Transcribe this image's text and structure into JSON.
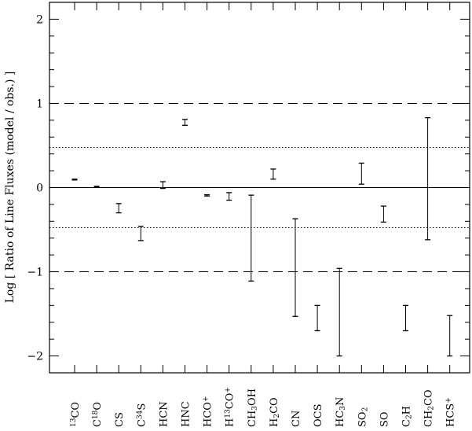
{
  "chart_data": {
    "type": "errorbar",
    "ylabel": "Log [ Ratio of Line Fluxes (model / obs.) ]",
    "ylim": [
      -2.2,
      2.2
    ],
    "yticks": [
      {
        "value": 2,
        "label": "2"
      },
      {
        "value": 1,
        "label": "1"
      },
      {
        "value": 0,
        "label": "0"
      },
      {
        "value": -1,
        "label": "−1"
      },
      {
        "value": -2,
        "label": "−2"
      }
    ],
    "reference_lines": [
      {
        "y": 1,
        "style": "dashed"
      },
      {
        "y": -1,
        "style": "dashed"
      },
      {
        "y": 0.477,
        "style": "dotted"
      },
      {
        "y": -0.477,
        "style": "dotted"
      },
      {
        "y": 0,
        "style": "solid"
      }
    ],
    "categories": [
      {
        "name": "13CO",
        "parts": [
          {
            "t": "13",
            "s": "sup"
          },
          {
            "t": "CO"
          }
        ]
      },
      {
        "name": "C18O",
        "parts": [
          {
            "t": "C"
          },
          {
            "t": "18",
            "s": "sup"
          },
          {
            "t": "O"
          }
        ]
      },
      {
        "name": "CS",
        "parts": [
          {
            "t": "CS"
          }
        ]
      },
      {
        "name": "C34S",
        "parts": [
          {
            "t": "C"
          },
          {
            "t": "34",
            "s": "sup"
          },
          {
            "t": "S"
          }
        ]
      },
      {
        "name": "HCN",
        "parts": [
          {
            "t": "HCN"
          }
        ]
      },
      {
        "name": "HNC",
        "parts": [
          {
            "t": "HNC"
          }
        ]
      },
      {
        "name": "HCO+",
        "parts": [
          {
            "t": "HCO"
          },
          {
            "t": "+",
            "s": "sup"
          }
        ]
      },
      {
        "name": "H13CO+",
        "parts": [
          {
            "t": "H"
          },
          {
            "t": "13",
            "s": "sup"
          },
          {
            "t": "CO"
          },
          {
            "t": "+",
            "s": "sup"
          }
        ]
      },
      {
        "name": "CH3OH",
        "parts": [
          {
            "t": "CH"
          },
          {
            "t": "3",
            "s": "sub"
          },
          {
            "t": "OH"
          }
        ]
      },
      {
        "name": "H2CO",
        "parts": [
          {
            "t": "H"
          },
          {
            "t": "2",
            "s": "sub"
          },
          {
            "t": "CO"
          }
        ]
      },
      {
        "name": "CN",
        "parts": [
          {
            "t": "CN"
          }
        ]
      },
      {
        "name": "OCS",
        "parts": [
          {
            "t": "OCS"
          }
        ]
      },
      {
        "name": "HC3N",
        "parts": [
          {
            "t": "HC"
          },
          {
            "t": "3",
            "s": "sub"
          },
          {
            "t": "N"
          }
        ]
      },
      {
        "name": "SO2",
        "parts": [
          {
            "t": "SO"
          },
          {
            "t": "2",
            "s": "sub"
          }
        ]
      },
      {
        "name": "SO",
        "parts": [
          {
            "t": "SO"
          }
        ]
      },
      {
        "name": "C2H",
        "parts": [
          {
            "t": "C"
          },
          {
            "t": "2",
            "s": "sub"
          },
          {
            "t": "H"
          }
        ]
      },
      {
        "name": "CH2CO",
        "parts": [
          {
            "t": "CH"
          },
          {
            "t": "2",
            "s": "sub"
          },
          {
            "t": "CO"
          }
        ]
      },
      {
        "name": "HCS+",
        "parts": [
          {
            "t": "HCS"
          },
          {
            "t": "+",
            "s": "sup"
          }
        ]
      }
    ],
    "ranges": [
      {
        "low": 0.09,
        "high": 0.1
      },
      {
        "low": 0.005,
        "high": 0.015
      },
      {
        "low": -0.3,
        "high": -0.19
      },
      {
        "low": -0.63,
        "high": -0.46
      },
      {
        "low": -0.01,
        "high": 0.07
      },
      {
        "low": 0.74,
        "high": 0.81
      },
      {
        "low": -0.1,
        "high": -0.085
      },
      {
        "low": -0.15,
        "high": -0.06
      },
      {
        "low": -1.11,
        "high": -0.09
      },
      {
        "low": 0.1,
        "high": 0.22
      },
      {
        "low": -1.53,
        "high": -0.37
      },
      {
        "low": -1.7,
        "high": -1.4
      },
      {
        "low": -2.0,
        "high": -0.96
      },
      {
        "low": 0.04,
        "high": 0.29
      },
      {
        "low": -0.41,
        "high": -0.22
      },
      {
        "low": -1.7,
        "high": -1.4
      },
      {
        "low": -0.62,
        "high": 0.83
      },
      {
        "low": -2.0,
        "high": -1.52
      }
    ]
  }
}
